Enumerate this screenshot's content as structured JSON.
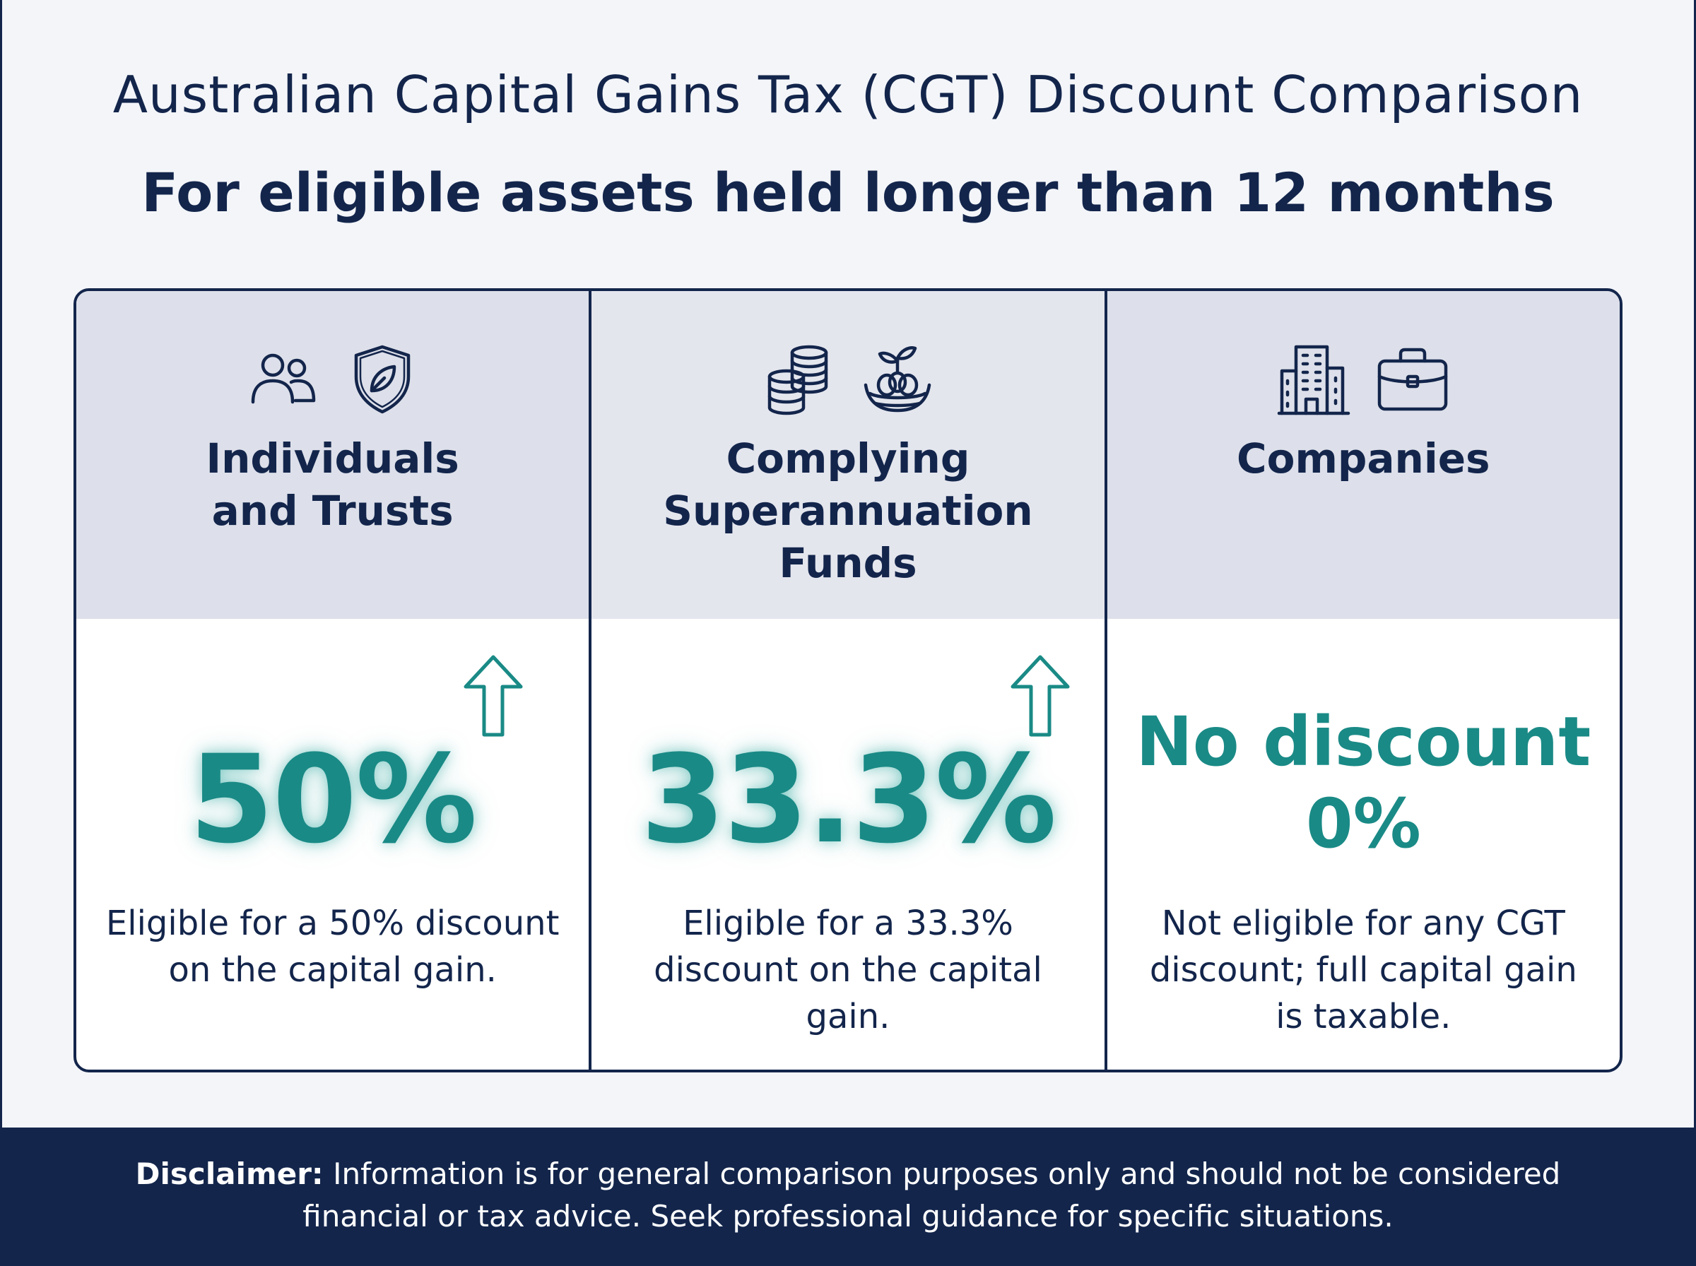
{
  "header": {
    "title": "Australian Capital Gains Tax (CGT) Discount Comparison",
    "subtitle": "For eligible assets held longer than 12 months"
  },
  "columns": [
    {
      "title": "Individuals\nand Trusts",
      "icons": [
        "people-icon",
        "leaf-shield-icon"
      ],
      "value": "50%",
      "description": "Eligible for a 50% discount on the capital gain."
    },
    {
      "title": "Complying\nSuperannuation\nFunds",
      "icons": [
        "coin-stacks-icon",
        "nest-egg-icon"
      ],
      "value": "33.3%",
      "description": "Eligible for a 33.3% discount on the capital gain."
    },
    {
      "title": "Companies",
      "icons": [
        "office-building-icon",
        "briefcase-icon"
      ],
      "value_line1": "No discount",
      "value_line2": "0%",
      "description": "Not eligible for any CGT discount; full capital gain is taxable."
    }
  ],
  "footer": {
    "label": "Disclaimer:",
    "text": " Information is for general comparison purposes only and should not be considered financial or tax advice. Seek professional guidance for specific situations."
  },
  "colors": {
    "navy": "#13254b",
    "teal": "#1a8a86",
    "header_bg": "#dde0ea",
    "page_bg": "#f3f5f9"
  }
}
